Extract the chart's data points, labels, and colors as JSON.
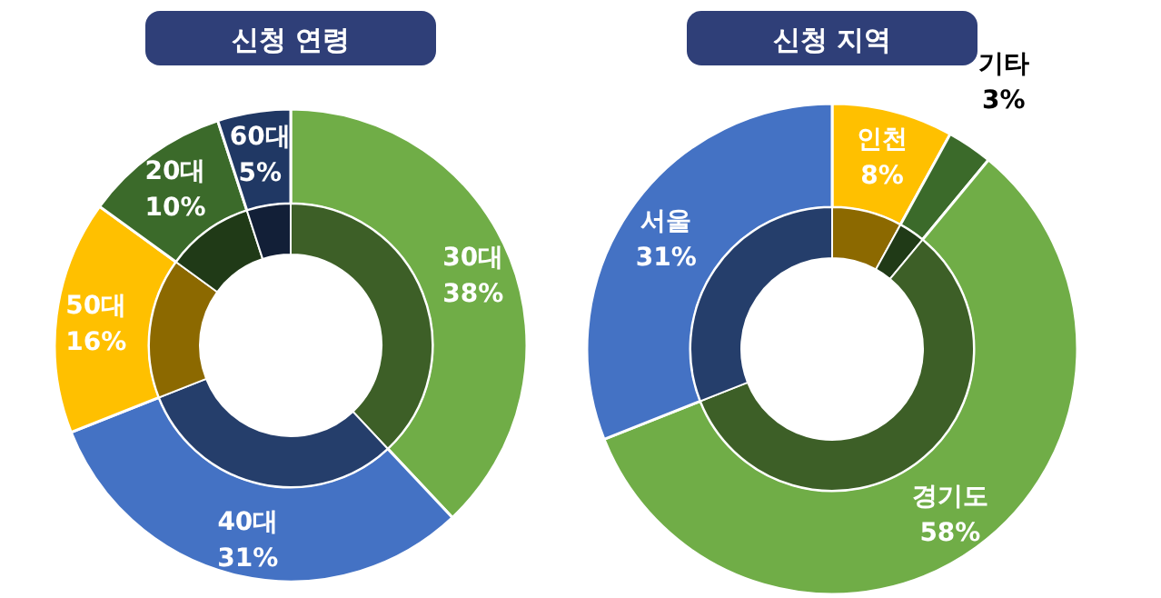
{
  "chart_data": [
    {
      "type": "donut",
      "title": "신청 연령",
      "categories": [
        "30대",
        "40대",
        "50대",
        "20대",
        "60대"
      ],
      "value_labels": [
        "38%",
        "31%",
        "16%",
        "10%",
        "5%"
      ],
      "series": [
        {
          "values": [
            38,
            31,
            16,
            10,
            5
          ],
          "colors": [
            "#70ad47",
            "#4472c4",
            "#ffc000",
            "#3b6a2a",
            "#203864"
          ]
        },
        {
          "values": [
            38,
            31,
            16,
            10,
            5
          ],
          "colors": [
            "#3d5f27",
            "#253e6b",
            "#8c6900",
            "#203a17",
            "#121f37"
          ]
        }
      ]
    },
    {
      "type": "donut",
      "title": "신청 지역",
      "categories": [
        "인천",
        "기타",
        "경기도",
        "서울"
      ],
      "value_labels": [
        "8%",
        "3%",
        "58%",
        "31%"
      ],
      "series": [
        {
          "values": [
            8,
            3,
            58,
            31
          ],
          "colors": [
            "#ffc000",
            "#3b6a2a",
            "#70ad47",
            "#4472c4"
          ]
        },
        {
          "values": [
            8,
            3,
            58,
            31
          ],
          "colors": [
            "#8c6900",
            "#203a17",
            "#3d5f27",
            "#253e6b"
          ]
        }
      ]
    }
  ]
}
